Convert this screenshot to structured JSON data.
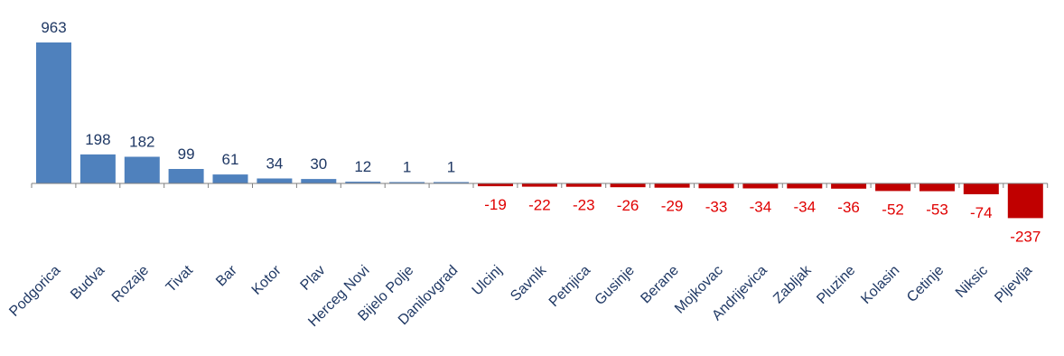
{
  "chart_data": {
    "type": "bar",
    "categories": [
      "Podgorica",
      "Budva",
      "Rozaje",
      "Tivat",
      "Bar",
      "Kotor",
      "Plav",
      "Herceg Novi",
      "Bijelo Polje",
      "Danilovgrad",
      "Ulcinj",
      "Savnik",
      "Petnjica",
      "Gusinje",
      "Berane",
      "Mojkovac",
      "Andrijevica",
      "Zabljak",
      "Pluzine",
      "Kolasin",
      "Cetinje",
      "Niksic",
      "Pljevlja"
    ],
    "values": [
      963,
      198,
      182,
      99,
      61,
      34,
      30,
      12,
      1,
      1,
      -19,
      -22,
      -23,
      -26,
      -29,
      -33,
      -34,
      -34,
      -36,
      -52,
      -53,
      -74,
      -237
    ],
    "value_labels": [
      "963",
      "198",
      "182",
      "99",
      "61",
      "34",
      "30",
      "12",
      "1",
      "1",
      "-19",
      "-22",
      "-23",
      "-26",
      "-29",
      "-33",
      "-34",
      "-34",
      "-36",
      "-52",
      "-53",
      "-74",
      "-237"
    ],
    "title": "",
    "xlabel": "",
    "ylabel": "",
    "ylim": [
      -237,
      963
    ],
    "grid": false,
    "legend": "none",
    "colors": {
      "positive": "#4f81bd",
      "negative": "#c00000",
      "positive_label": "#1f3864",
      "negative_label": "#e00000",
      "axis": "#808080"
    }
  }
}
